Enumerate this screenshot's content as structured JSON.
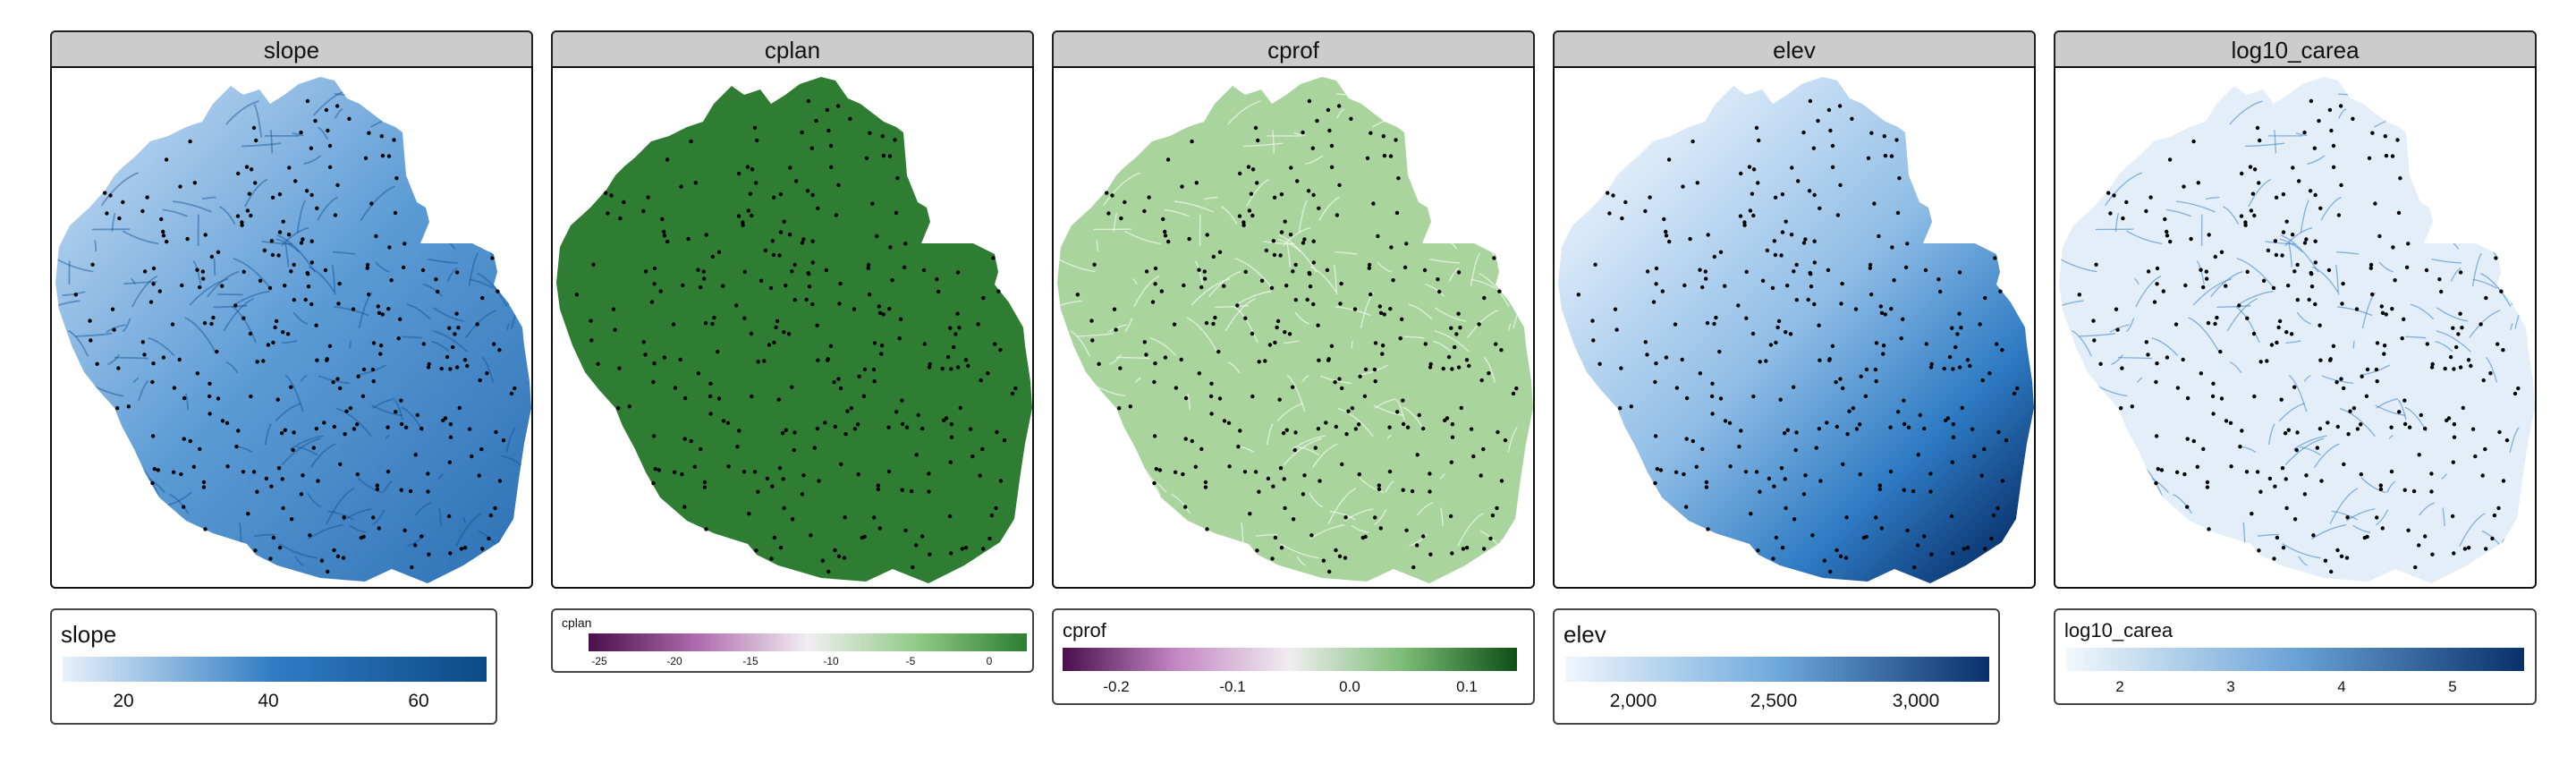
{
  "panels": [
    {
      "id": "slope",
      "title": "slope"
    },
    {
      "id": "cplan",
      "title": "cplan"
    },
    {
      "id": "cprof",
      "title": "cprof"
    },
    {
      "id": "elev",
      "title": "elev"
    },
    {
      "id": "log10_carea",
      "title": "log10_carea"
    }
  ],
  "legends": {
    "slope": {
      "title": "slope",
      "ticks": [
        "20",
        "40",
        "60"
      ],
      "colors": [
        "#e8f1fb",
        "#2f7cc4",
        "#0b4a86"
      ]
    },
    "cplan": {
      "title": "cplan",
      "ticks": [
        "-25",
        "-20",
        "-15",
        "-10",
        "-5",
        "0"
      ],
      "colors": [
        "#4a0f4a",
        "#b06cae",
        "#f2eef2",
        "#8fcb86",
        "#2c7e30"
      ]
    },
    "cprof": {
      "title": "cprof",
      "ticks": [
        "-0.2",
        "-0.1",
        "0.0",
        "0.1"
      ],
      "colors": [
        "#4a0f4a",
        "#c487c4",
        "#f0edf0",
        "#7bbd75",
        "#0d4f16"
      ]
    },
    "elev": {
      "title": "elev",
      "ticks": [
        "2,000",
        "2,500",
        "3,000"
      ],
      "colors": [
        "#f0f6fd",
        "#6ea9dc",
        "#08306b"
      ]
    },
    "log10_carea": {
      "title": "log10_carea",
      "ticks": [
        "2",
        "3",
        "4",
        "5"
      ],
      "colors": [
        "#f3f8fd",
        "#6aa3d6",
        "#08306b"
      ]
    }
  },
  "colors": {
    "slope_fill": "#5b9bd5",
    "cplan_fill": "#2f7d32",
    "cprof_fill": "#a9d49e",
    "elev_fill": "#5a9bd4",
    "carea_fill": "#d5e6f6",
    "point_color": "#000000"
  }
}
